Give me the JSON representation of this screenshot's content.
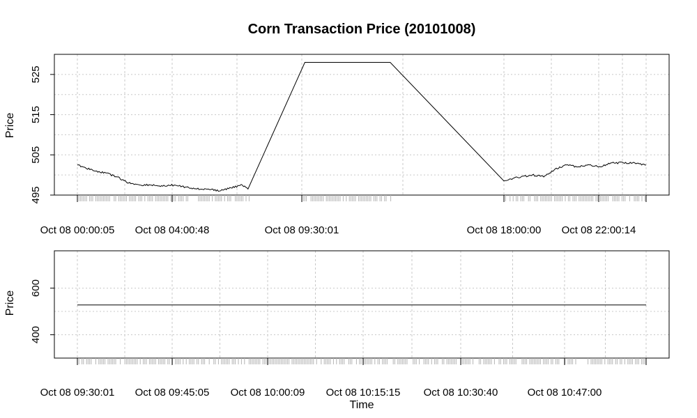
{
  "chart_data": {
    "title": "Corn Transaction Price (20101008)",
    "panels": [
      {
        "type": "line",
        "ylabel": "Price",
        "ylim": [
          495,
          530
        ],
        "yticks": [
          495,
          505,
          515,
          525
        ],
        "xticks": [
          "Oct 08 00:00:05",
          "Oct 08 04:00:48",
          "Oct 08 09:30:01",
          "Oct 08 18:00:00",
          "Oct 08 22:00:14"
        ],
        "series": [
          {
            "x": [
              0,
              0.01,
              0.03,
              0.05,
              0.07,
              0.09,
              0.11,
              0.13,
              0.15,
              0.17,
              0.19,
              0.21,
              0.23,
              0.25,
              0.27,
              0.29,
              0.3,
              0.4,
              0.55,
              0.75,
              0.76,
              0.78,
              0.8,
              0.82,
              0.84,
              0.86,
              0.88,
              0.9,
              0.92,
              0.94,
              0.96,
              0.98,
              1.0
            ],
            "y": [
              502.5,
              502,
              501,
              500.5,
              499.5,
              498,
              497.5,
              497.5,
              497.2,
              497.5,
              497,
              496.5,
              496.5,
              496,
              496.8,
              497.5,
              496.5,
              528,
              528,
              498.5,
              499,
              499.5,
              500,
              499.5,
              501.5,
              502.5,
              502,
              502.5,
              502,
              503,
              503,
              503,
              502.5
            ]
          }
        ],
        "grid": true
      },
      {
        "type": "line",
        "ylabel": "Price",
        "xlabel": "Time",
        "ylim": [
          300,
          760
        ],
        "yticks": [
          400,
          600
        ],
        "xticks": [
          "Oct 08 09:30:01",
          "Oct 08 09:45:05",
          "Oct 08 10:00:09",
          "Oct 08 10:15:15",
          "Oct 08 10:30:40",
          "Oct 08 10:47:00"
        ],
        "series": [
          {
            "x": [
              0,
              1
            ],
            "y": [
              528,
              528
            ]
          }
        ],
        "grid": true
      }
    ]
  }
}
